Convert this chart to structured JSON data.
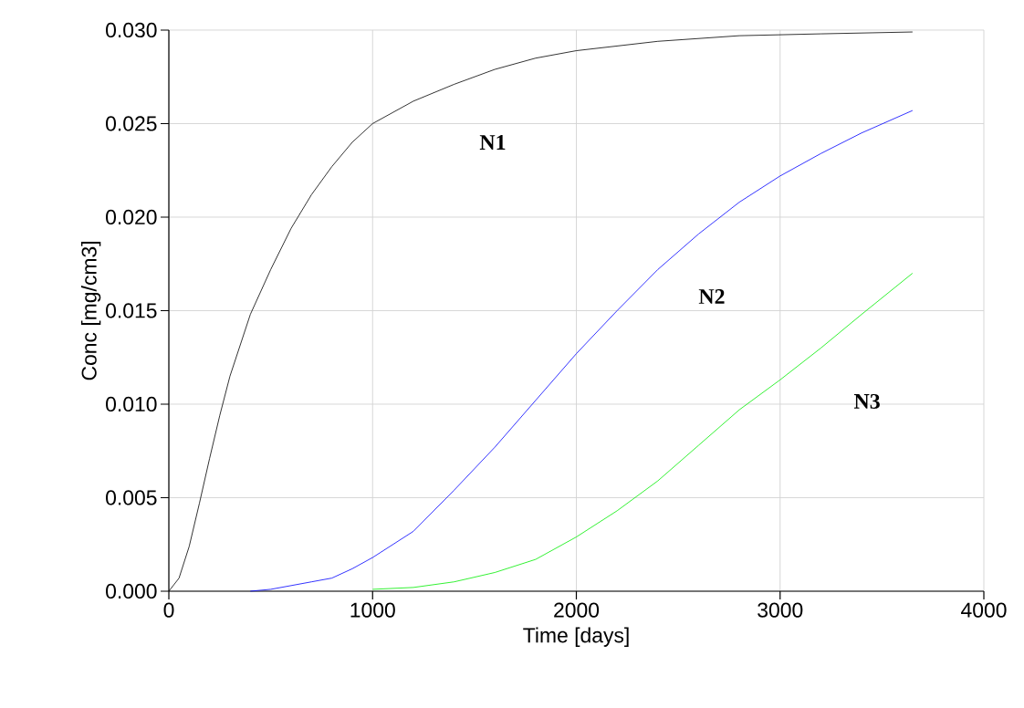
{
  "chart_data": {
    "type": "line",
    "xlabel": "Time [days]",
    "ylabel": "Conc [mg/cm3]",
    "xlim": [
      0,
      4000
    ],
    "ylim": [
      0,
      0.03
    ],
    "xticks": [
      0,
      1000,
      2000,
      3000,
      4000
    ],
    "yticks": [
      {
        "value": 0,
        "label": "0.000"
      },
      {
        "value": 0.005,
        "label": "0.005"
      },
      {
        "value": 0.01,
        "label": "0.010"
      },
      {
        "value": 0.015,
        "label": "0.015"
      },
      {
        "value": 0.02,
        "label": "0.020"
      },
      {
        "value": 0.025,
        "label": "0.025"
      },
      {
        "value": 0.03,
        "label": "0.030"
      }
    ],
    "grid": true,
    "legend": false,
    "marker": "none",
    "line_style": "solid",
    "series": [
      {
        "name": "N1",
        "color": "#000000",
        "x": [
          0,
          50,
          100,
          150,
          200,
          250,
          300,
          400,
          500,
          600,
          700,
          800,
          900,
          1000,
          1200,
          1400,
          1600,
          1800,
          2000,
          2400,
          2800,
          3200,
          3650
        ],
        "values": [
          0,
          0.0007,
          0.0024,
          0.0047,
          0.0071,
          0.0094,
          0.0115,
          0.0148,
          0.0172,
          0.0194,
          0.0212,
          0.0227,
          0.024,
          0.025,
          0.0262,
          0.0271,
          0.0279,
          0.0285,
          0.0289,
          0.0294,
          0.0297,
          0.0298,
          0.0299
        ]
      },
      {
        "name": "N2",
        "color": "#0000ff",
        "x": [
          400,
          500,
          600,
          700,
          800,
          900,
          1000,
          1200,
          1400,
          1600,
          1800,
          2000,
          2200,
          2400,
          2600,
          2800,
          3000,
          3200,
          3400,
          3650
        ],
        "values": [
          0,
          0.0001,
          0.0003,
          0.0005,
          0.0007,
          0.0012,
          0.0018,
          0.0032,
          0.0054,
          0.0077,
          0.0102,
          0.0127,
          0.015,
          0.0172,
          0.0191,
          0.0208,
          0.0222,
          0.0234,
          0.0245,
          0.0257
        ]
      },
      {
        "name": "N3",
        "color": "#00ee00",
        "x": [
          1000,
          1200,
          1400,
          1600,
          1800,
          2000,
          2200,
          2400,
          2600,
          2800,
          3000,
          3200,
          3400,
          3650
        ],
        "values": [
          0.0001,
          0.0002,
          0.0005,
          0.001,
          0.0017,
          0.0029,
          0.0043,
          0.0059,
          0.0078,
          0.0097,
          0.0113,
          0.013,
          0.0148,
          0.017
        ]
      }
    ]
  }
}
